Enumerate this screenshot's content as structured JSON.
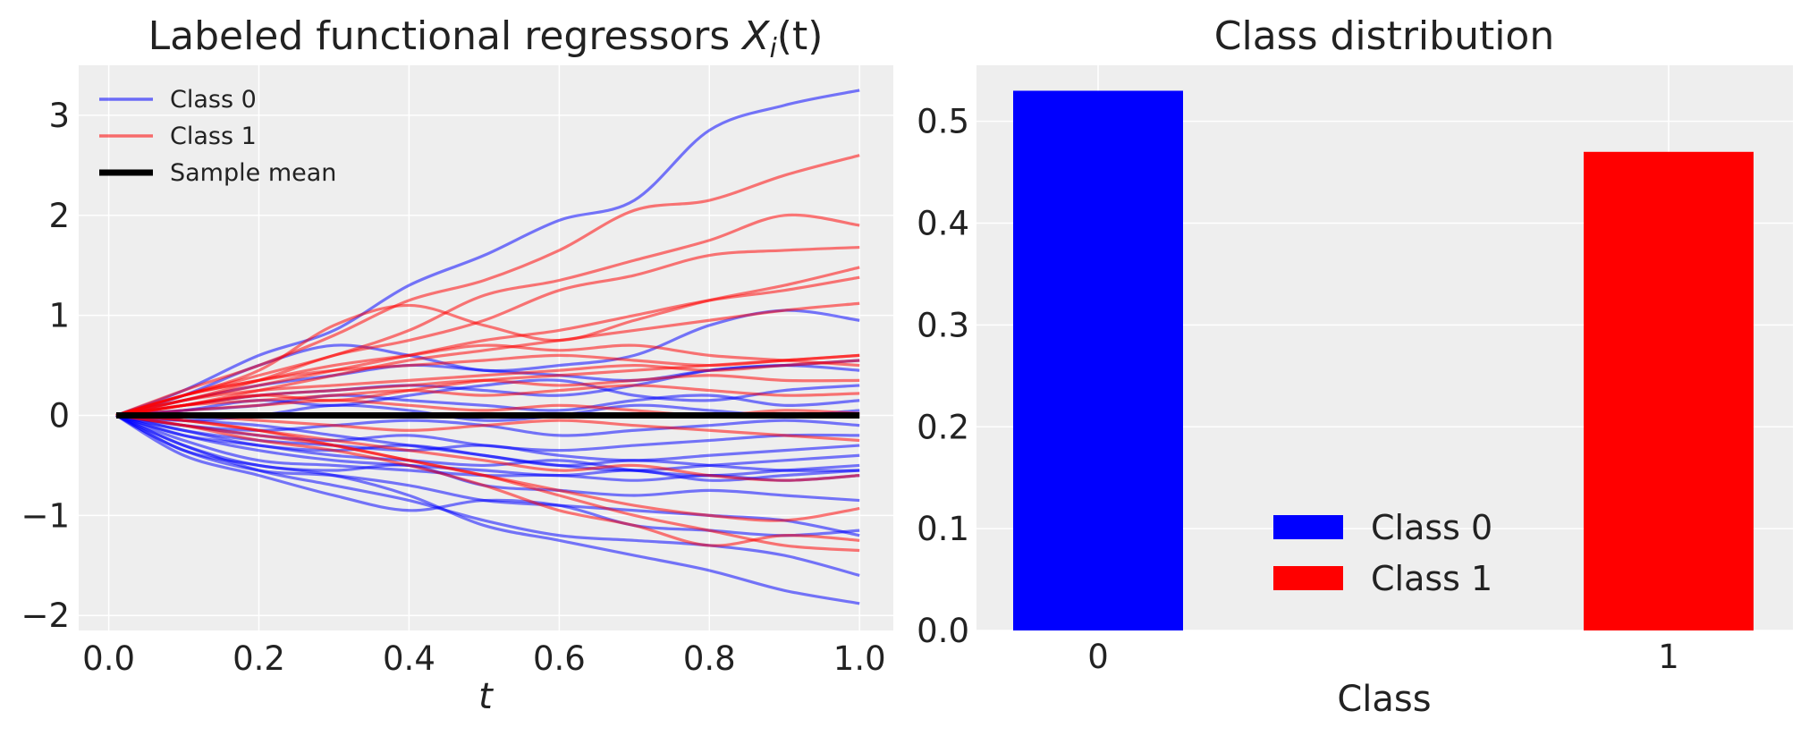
{
  "chart_data": [
    {
      "type": "line",
      "title_main": "Labeled functional regressors ",
      "title_math": "X",
      "title_sub": "i",
      "title_arg": "(t)",
      "xlabel": "t",
      "ylabel": "",
      "xlim": [
        -0.04,
        1.045
      ],
      "ylim": [
        -2.15,
        3.5
      ],
      "xticks": [
        0.0,
        0.2,
        0.4,
        0.6,
        0.8,
        1.0
      ],
      "xtick_labels": [
        "0.0",
        "0.2",
        "0.4",
        "0.6",
        "0.8",
        "1.0"
      ],
      "yticks": [
        -2,
        -1,
        0,
        1,
        2,
        3
      ],
      "ytick_labels": [
        "−2",
        "−1",
        "0",
        "1",
        "2",
        "3"
      ],
      "grid": true,
      "legend_position": "top-left",
      "legend": [
        {
          "label": "Class 0",
          "color": "#0000ff",
          "style": "thin"
        },
        {
          "label": "Class 1",
          "color": "#ff0000",
          "style": "thin"
        },
        {
          "label": "Sample mean",
          "color": "#000000",
          "style": "thick"
        }
      ],
      "x_grid": [
        0.01,
        0.1,
        0.2,
        0.3,
        0.4,
        0.5,
        0.6,
        0.7,
        0.8,
        0.9,
        1.0
      ],
      "series": [
        {
          "name": "Class 0",
          "class": 0,
          "values": [
            0.0,
            0.25,
            0.6,
            0.85,
            1.3,
            1.6,
            1.95,
            2.15,
            2.85,
            3.1,
            3.25
          ]
        },
        {
          "name": "Class 0",
          "class": 0,
          "values": [
            0.0,
            0.2,
            0.5,
            0.7,
            0.6,
            0.45,
            0.5,
            0.6,
            0.9,
            1.05,
            0.95
          ]
        },
        {
          "name": "Class 0",
          "class": 0,
          "values": [
            0.0,
            0.1,
            0.2,
            0.25,
            0.3,
            0.25,
            0.2,
            0.3,
            0.45,
            0.5,
            0.55
          ]
        },
        {
          "name": "Class 0",
          "class": 0,
          "values": [
            0.0,
            0.05,
            0.15,
            0.1,
            0.2,
            0.3,
            0.35,
            0.2,
            0.15,
            0.25,
            0.3
          ]
        },
        {
          "name": "Class 0",
          "class": 0,
          "values": [
            0.0,
            0.05,
            0.1,
            0.2,
            0.15,
            0.1,
            0.05,
            0.15,
            0.2,
            0.1,
            0.15
          ]
        },
        {
          "name": "Class 0",
          "class": 0,
          "values": [
            0.0,
            -0.05,
            0.0,
            0.1,
            0.05,
            -0.05,
            0.0,
            0.1,
            0.05,
            0.0,
            0.05
          ]
        },
        {
          "name": "Class 0",
          "class": 0,
          "values": [
            0.0,
            -0.1,
            -0.15,
            -0.1,
            -0.05,
            -0.1,
            -0.2,
            -0.15,
            -0.1,
            -0.05,
            -0.1
          ]
        },
        {
          "name": "Class 0",
          "class": 0,
          "values": [
            0.0,
            -0.1,
            -0.2,
            -0.25,
            -0.2,
            -0.3,
            -0.35,
            -0.3,
            -0.25,
            -0.2,
            -0.2
          ]
        },
        {
          "name": "Class 0",
          "class": 0,
          "values": [
            0.0,
            -0.15,
            -0.25,
            -0.3,
            -0.35,
            -0.3,
            -0.4,
            -0.45,
            -0.4,
            -0.35,
            -0.3
          ]
        },
        {
          "name": "Class 0",
          "class": 0,
          "values": [
            0.0,
            -0.15,
            -0.3,
            -0.35,
            -0.3,
            -0.4,
            -0.5,
            -0.55,
            -0.5,
            -0.45,
            -0.4
          ]
        },
        {
          "name": "Class 0",
          "class": 0,
          "values": [
            0.0,
            -0.2,
            -0.3,
            -0.4,
            -0.45,
            -0.5,
            -0.45,
            -0.55,
            -0.6,
            -0.55,
            -0.5
          ]
        },
        {
          "name": "Class 0",
          "class": 0,
          "values": [
            0.0,
            -0.2,
            -0.35,
            -0.45,
            -0.5,
            -0.55,
            -0.6,
            -0.55,
            -0.65,
            -0.6,
            -0.55
          ]
        },
        {
          "name": "Class 0",
          "class": 0,
          "values": [
            0.0,
            -0.25,
            -0.45,
            -0.5,
            -0.55,
            -0.6,
            -0.6,
            -0.65,
            -0.6,
            -0.65,
            -0.6
          ]
        },
        {
          "name": "Class 0",
          "class": 0,
          "values": [
            0.0,
            -0.3,
            -0.5,
            -0.55,
            -0.5,
            -0.7,
            -0.75,
            -0.8,
            -0.75,
            -0.8,
            -0.85
          ]
        },
        {
          "name": "Class 0",
          "class": 0,
          "values": [
            0.0,
            -0.35,
            -0.55,
            -0.6,
            -0.7,
            -0.85,
            -0.9,
            -0.95,
            -1.0,
            -1.05,
            -1.2
          ]
        },
        {
          "name": "Class 0",
          "class": 0,
          "values": [
            0.0,
            -0.4,
            -0.6,
            -0.8,
            -0.95,
            -0.85,
            -0.9,
            -1.1,
            -1.15,
            -1.2,
            -1.15
          ]
        },
        {
          "name": "Class 0",
          "class": 0,
          "values": [
            0.0,
            -0.3,
            -0.55,
            -0.7,
            -0.85,
            -1.05,
            -1.2,
            -1.25,
            -1.3,
            -1.4,
            -1.6
          ]
        },
        {
          "name": "Class 0",
          "class": 0,
          "values": [
            0.0,
            -0.35,
            -0.5,
            -0.6,
            -0.8,
            -1.1,
            -1.25,
            -1.4,
            -1.55,
            -1.75,
            -1.88
          ]
        },
        {
          "name": "Class 0",
          "class": 0,
          "values": [
            0.0,
            0.15,
            0.3,
            0.4,
            0.5,
            0.45,
            0.4,
            0.35,
            0.45,
            0.5,
            0.45
          ]
        },
        {
          "name": "Class 0",
          "class": 0,
          "values": [
            0.0,
            -0.05,
            -0.1,
            -0.2,
            -0.3,
            -0.4,
            -0.5,
            -0.45,
            -0.5,
            -0.55,
            -0.55
          ]
        },
        {
          "name": "Class 1",
          "class": 1,
          "values": [
            0.0,
            0.25,
            0.5,
            0.8,
            1.15,
            1.35,
            1.65,
            2.05,
            2.15,
            2.4,
            2.6
          ]
        },
        {
          "name": "Class 1",
          "class": 1,
          "values": [
            0.0,
            0.2,
            0.4,
            0.6,
            0.85,
            1.2,
            1.35,
            1.55,
            1.75,
            2.0,
            1.9
          ]
        },
        {
          "name": "Class 1",
          "class": 1,
          "values": [
            0.0,
            0.15,
            0.35,
            0.6,
            0.75,
            0.95,
            1.25,
            1.4,
            1.6,
            1.65,
            1.68
          ]
        },
        {
          "name": "Class 1",
          "class": 1,
          "values": [
            0.0,
            0.2,
            0.45,
            0.9,
            1.1,
            0.9,
            0.75,
            0.95,
            1.15,
            1.3,
            1.48
          ]
        },
        {
          "name": "Class 1",
          "class": 1,
          "values": [
            0.0,
            0.15,
            0.3,
            0.45,
            0.6,
            0.75,
            0.85,
            1.0,
            1.15,
            1.25,
            1.38
          ]
        },
        {
          "name": "Class 1",
          "class": 1,
          "values": [
            0.0,
            0.1,
            0.25,
            0.4,
            0.55,
            0.65,
            0.75,
            0.85,
            0.95,
            1.05,
            1.12
          ]
        },
        {
          "name": "Class 1",
          "class": 1,
          "values": [
            0.0,
            0.2,
            0.35,
            0.45,
            0.5,
            0.55,
            0.6,
            0.55,
            0.5,
            0.55,
            0.6
          ]
        },
        {
          "name": "Class 1",
          "class": 1,
          "values": [
            0.0,
            0.15,
            0.25,
            0.3,
            0.35,
            0.4,
            0.45,
            0.5,
            0.45,
            0.5,
            0.55
          ]
        },
        {
          "name": "Class 1",
          "class": 1,
          "values": [
            0.0,
            0.1,
            0.2,
            0.25,
            0.3,
            0.35,
            0.3,
            0.35,
            0.4,
            0.35,
            0.35
          ]
        },
        {
          "name": "Class 1",
          "class": 1,
          "values": [
            0.0,
            0.1,
            0.15,
            0.2,
            0.25,
            0.2,
            0.25,
            0.3,
            0.25,
            0.2,
            0.22
          ]
        },
        {
          "name": "Class 1",
          "class": 1,
          "values": [
            0.0,
            0.05,
            0.1,
            0.15,
            0.1,
            0.05,
            0.1,
            0.05,
            0.0,
            0.05,
            0.02
          ]
        },
        {
          "name": "Class 1",
          "class": 1,
          "values": [
            0.0,
            0.0,
            -0.05,
            -0.1,
            -0.15,
            -0.1,
            -0.05,
            -0.1,
            -0.15,
            -0.2,
            -0.25
          ]
        },
        {
          "name": "Class 1",
          "class": 1,
          "values": [
            0.0,
            -0.05,
            -0.15,
            -0.25,
            -0.35,
            -0.45,
            -0.55,
            -0.5,
            -0.6,
            -0.65,
            -0.6
          ]
        },
        {
          "name": "Class 1",
          "class": 1,
          "values": [
            0.0,
            -0.1,
            -0.2,
            -0.3,
            -0.45,
            -0.6,
            -0.75,
            -0.9,
            -1.0,
            -1.05,
            -0.93
          ]
        },
        {
          "name": "Class 1",
          "class": 1,
          "values": [
            0.0,
            -0.1,
            -0.25,
            -0.35,
            -0.5,
            -0.7,
            -0.95,
            -1.1,
            -1.3,
            -1.2,
            -1.25
          ]
        },
        {
          "name": "Class 1",
          "class": 1,
          "values": [
            0.0,
            -0.05,
            -0.15,
            -0.3,
            -0.45,
            -0.6,
            -0.8,
            -1.0,
            -1.15,
            -1.3,
            -1.35
          ]
        },
        {
          "name": "Class 1",
          "class": 1,
          "values": [
            0.0,
            0.2,
            0.35,
            0.5,
            0.6,
            0.7,
            0.65,
            0.7,
            0.6,
            0.55,
            0.5
          ]
        },
        {
          "name": "Class 1",
          "class": 1,
          "values": [
            0.0,
            0.1,
            0.2,
            0.15,
            0.25,
            0.35,
            0.4,
            0.45,
            0.5,
            0.55,
            0.6
          ]
        }
      ],
      "mean_line": {
        "name": "Sample mean",
        "values": [
          0.0,
          0.0,
          0.0,
          0.0,
          0.0,
          0.0,
          0.0,
          0.0,
          0.0,
          0.0,
          0.0
        ]
      }
    },
    {
      "type": "bar",
      "title": "Class distribution",
      "xlabel": "Class",
      "ylabel": "",
      "categories": [
        "0",
        "1"
      ],
      "values": [
        0.53,
        0.47
      ],
      "colors": [
        "#0000ff",
        "#ff0000"
      ],
      "ylim": [
        0,
        0.555
      ],
      "yticks": [
        0.0,
        0.1,
        0.2,
        0.3,
        0.4,
        0.5
      ],
      "ytick_labels": [
        "0.0",
        "0.1",
        "0.2",
        "0.3",
        "0.4",
        "0.5"
      ],
      "grid": true,
      "legend_position": "lower-center",
      "legend": [
        {
          "label": "Class 0",
          "color": "#0000ff"
        },
        {
          "label": "Class 1",
          "color": "#ff0000"
        }
      ]
    }
  ]
}
